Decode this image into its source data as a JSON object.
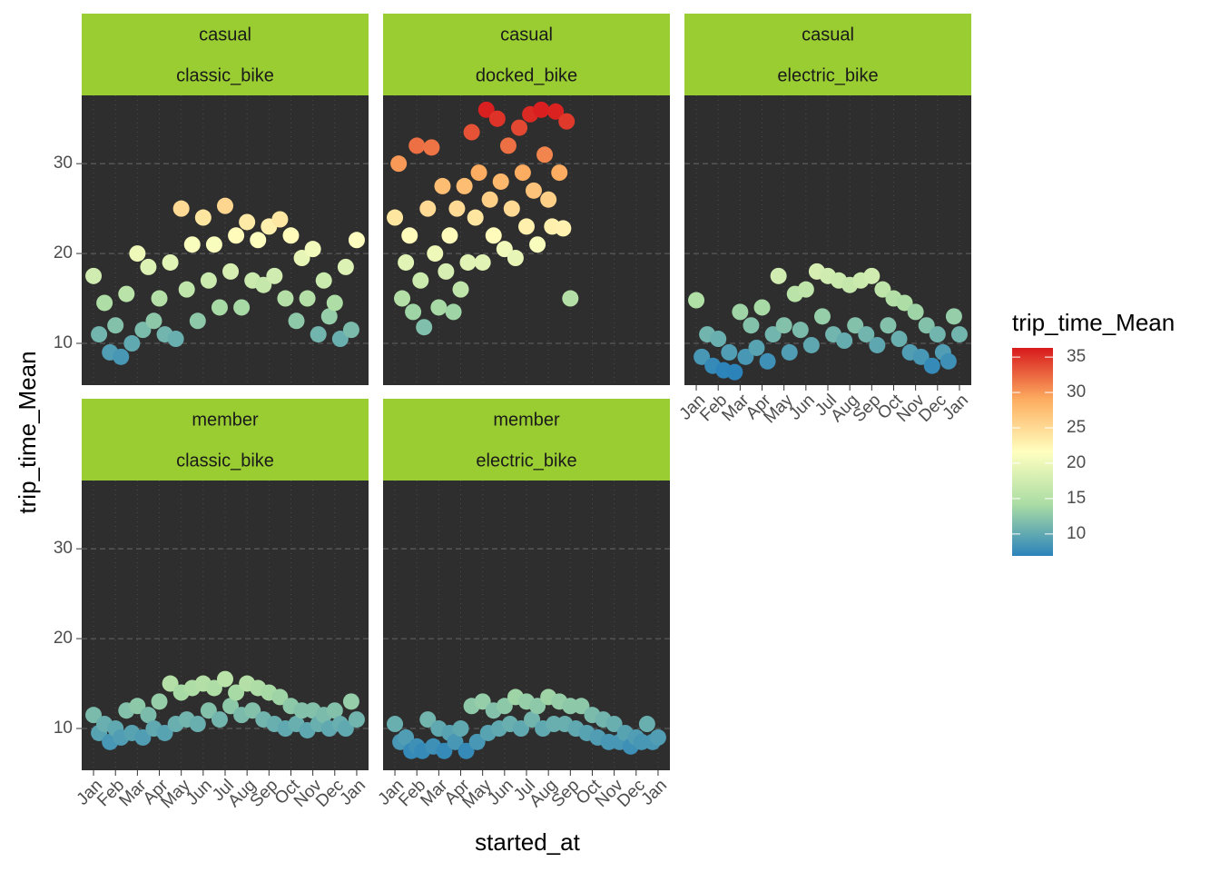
{
  "chart_data": {
    "type": "scatter",
    "x_label": "started_at",
    "y_label": "trip_time_Mean",
    "color_label": "trip_time_Mean",
    "strip_color": "#9acd32",
    "panel_color": "#2e2e2e",
    "colors": [
      "#2b83ba",
      "#abdda4",
      "#ffffbf",
      "#fdae61",
      "#d7191c"
    ],
    "clim": [
      6.9,
      36.3
    ],
    "cticks": [
      10,
      15,
      20,
      25,
      30,
      35
    ],
    "xlim": [
      0.46,
      13.54
    ],
    "ylim": [
      5.35,
      37.6
    ],
    "yticks": [
      10,
      20,
      30
    ],
    "xticks": [
      {
        "value": 1,
        "label": "Jan"
      },
      {
        "value": 2,
        "label": "Feb"
      },
      {
        "value": 3,
        "label": "Mar"
      },
      {
        "value": 4,
        "label": "Apr"
      },
      {
        "value": 5,
        "label": "May"
      },
      {
        "value": 6,
        "label": "Jun"
      },
      {
        "value": 7,
        "label": "Jul"
      },
      {
        "value": 8,
        "label": "Aug"
      },
      {
        "value": 9,
        "label": "Sep"
      },
      {
        "value": 10,
        "label": "Oct"
      },
      {
        "value": 11,
        "label": "Nov"
      },
      {
        "value": 12,
        "label": "Dec"
      },
      {
        "value": 13,
        "label": "Jan"
      }
    ],
    "grid": true,
    "facets": [
      {
        "strip": [
          "casual",
          "classic_bike"
        ],
        "x": [
          1,
          1.25,
          1.5,
          1.75,
          2,
          2.25,
          2.5,
          2.75,
          3,
          3.25,
          3.5,
          3.75,
          4,
          4.25,
          4.5,
          4.75,
          5,
          5.25,
          5.5,
          5.75,
          6,
          6.25,
          6.5,
          6.75,
          7,
          7.25,
          7.5,
          7.75,
          8,
          8.25,
          8.5,
          8.75,
          9,
          9.25,
          9.5,
          9.75,
          10,
          10.25,
          10.5,
          10.75,
          11,
          11.25,
          11.5,
          11.75,
          12,
          12.25,
          12.5,
          12.75,
          13
        ],
        "y": [
          17.5,
          11,
          14.5,
          9,
          12,
          8.5,
          15.5,
          10,
          20,
          11.5,
          18.5,
          12.5,
          15,
          11,
          19,
          10.5,
          25,
          16,
          21,
          12.5,
          24,
          17,
          21,
          14,
          25.3,
          18,
          22,
          14,
          23.5,
          17,
          21.5,
          16.5,
          23,
          17.5,
          23.8,
          15,
          22,
          12.5,
          19.5,
          15,
          20.5,
          11,
          17,
          13,
          14.5,
          10.5,
          18.5,
          11.5,
          21.5
        ]
      },
      {
        "strip": [
          "casual",
          "docked_bike"
        ],
        "x": [
          1,
          1.17,
          1.33,
          1.5,
          1.67,
          1.83,
          2,
          2.17,
          2.33,
          2.5,
          2.67,
          2.83,
          3,
          3.17,
          3.33,
          3.5,
          3.67,
          3.83,
          4,
          4.17,
          4.33,
          4.5,
          4.67,
          4.83,
          5,
          5.17,
          5.33,
          5.5,
          5.67,
          5.83,
          6,
          6.17,
          6.33,
          6.5,
          6.67,
          6.83,
          7,
          7.17,
          7.33,
          7.5,
          7.67,
          7.83,
          8,
          8.17,
          8.33,
          8.5,
          8.67,
          8.83,
          9
        ],
        "y": [
          24,
          30,
          15,
          19,
          22,
          13.5,
          32,
          17,
          11.8,
          25,
          31.8,
          20,
          14,
          27.5,
          18,
          22,
          13.5,
          25,
          16,
          27.5,
          19,
          33.5,
          24,
          29,
          19,
          36,
          26,
          22,
          35,
          28,
          20.5,
          32,
          25,
          19.5,
          34,
          29,
          23,
          35.5,
          27,
          21,
          36,
          31,
          26,
          23,
          35.8,
          29,
          22.8,
          34.7,
          15
        ]
      },
      {
        "strip": [
          "casual",
          "electric_bike"
        ],
        "x": [
          1,
          1.25,
          1.5,
          1.75,
          2,
          2.25,
          2.5,
          2.75,
          3,
          3.25,
          3.5,
          3.75,
          4,
          4.25,
          4.5,
          4.75,
          5,
          5.25,
          5.5,
          5.75,
          6,
          6.25,
          6.5,
          6.75,
          7,
          7.25,
          7.5,
          7.75,
          8,
          8.25,
          8.5,
          8.75,
          9,
          9.25,
          9.5,
          9.75,
          10,
          10.25,
          10.5,
          10.75,
          11,
          11.25,
          11.5,
          11.75,
          12,
          12.25,
          12.5,
          12.75,
          13
        ],
        "y": [
          14.8,
          8.5,
          11,
          7.5,
          10.5,
          7,
          9,
          6.8,
          13.5,
          8.5,
          12,
          9.5,
          14,
          8,
          11,
          17.5,
          12,
          9,
          15.5,
          11.5,
          16,
          9.8,
          18,
          13,
          17.5,
          11,
          17,
          10.3,
          16.5,
          12,
          17,
          11,
          17.5,
          9.8,
          16,
          12,
          15,
          10.5,
          14.5,
          9,
          13.5,
          8.5,
          12,
          7.5,
          11,
          9,
          8,
          13,
          11
        ]
      },
      {
        "strip": [
          "member",
          "classic_bike"
        ],
        "x": [
          1,
          1.25,
          1.5,
          1.75,
          2,
          2.25,
          2.5,
          2.75,
          3,
          3.25,
          3.5,
          3.75,
          4,
          4.25,
          4.5,
          4.75,
          5,
          5.25,
          5.5,
          5.75,
          6,
          6.25,
          6.5,
          6.75,
          7,
          7.25,
          7.5,
          7.75,
          8,
          8.25,
          8.5,
          8.75,
          9,
          9.25,
          9.5,
          9.75,
          10,
          10.25,
          10.5,
          10.75,
          11,
          11.25,
          11.5,
          11.75,
          12,
          12.25,
          12.5,
          12.75,
          13
        ],
        "y": [
          11.5,
          9.5,
          10.5,
          8.5,
          10,
          9,
          12,
          9.5,
          12.5,
          9,
          11.5,
          10,
          13,
          9.5,
          15,
          10.5,
          14,
          11,
          14.5,
          10.5,
          15,
          12,
          14.5,
          11,
          15.5,
          12.5,
          14,
          11.5,
          15,
          12,
          14.5,
          11,
          14,
          10.5,
          13.5,
          10,
          12.5,
          10.5,
          12,
          9.8,
          12,
          10.5,
          11.5,
          10,
          12,
          10.5,
          10,
          13,
          11
        ]
      },
      {
        "strip": [
          "member",
          "electric_bike"
        ],
        "x": [
          1,
          1.25,
          1.5,
          1.75,
          2,
          2.25,
          2.5,
          2.75,
          3,
          3.25,
          3.5,
          3.75,
          4,
          4.25,
          4.5,
          4.75,
          5,
          5.25,
          5.5,
          5.75,
          6,
          6.25,
          6.5,
          6.75,
          7,
          7.25,
          7.5,
          7.75,
          8,
          8.25,
          8.5,
          8.75,
          9,
          9.25,
          9.5,
          9.75,
          10,
          10.25,
          10.5,
          10.75,
          11,
          11.25,
          11.5,
          11.75,
          12,
          12.25,
          12.5,
          12.75,
          13
        ],
        "y": [
          10.5,
          8.5,
          9,
          7.5,
          8,
          7.5,
          11,
          8,
          10,
          7.5,
          9.5,
          8.5,
          10,
          7.5,
          12.5,
          8.5,
          13,
          9.5,
          12,
          10,
          12.5,
          10.5,
          13.5,
          10,
          13,
          11,
          12.5,
          10,
          13.5,
          10.5,
          13,
          10.5,
          12.5,
          10,
          12.5,
          9.5,
          11.5,
          9,
          11,
          8.5,
          10.5,
          8.5,
          9.5,
          8,
          9,
          8.5,
          10.5,
          8.5,
          9
        ]
      }
    ]
  }
}
